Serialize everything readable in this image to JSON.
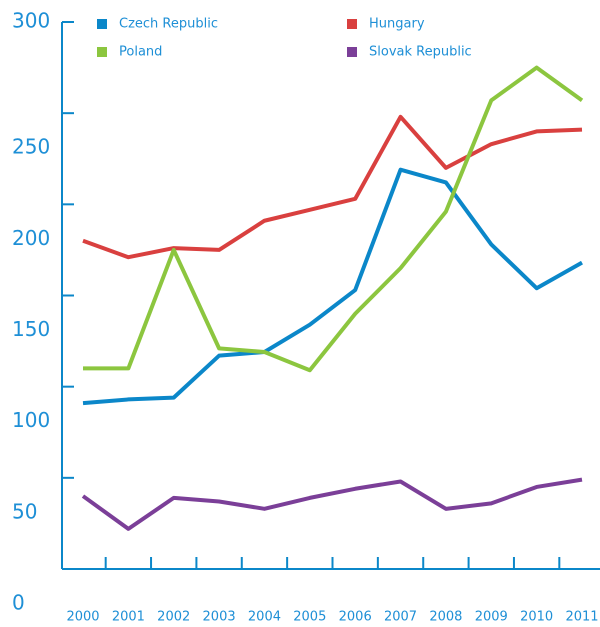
{
  "chart_data": {
    "type": "line",
    "categories": [
      "2000",
      "2001",
      "2002",
      "2003",
      "2004",
      "2005",
      "2006",
      "2007",
      "2008",
      "2009",
      "2010",
      "2011"
    ],
    "series": [
      {
        "name": "Czech Republic",
        "color": "#0b87c9",
        "values": [
          91,
          93,
          94,
          117,
          119,
          134,
          153,
          219,
          212,
          178,
          154,
          168
        ]
      },
      {
        "name": "Hungary",
        "color": "#d9403f",
        "values": [
          180,
          171,
          176,
          175,
          191,
          197,
          203,
          248,
          220,
          233,
          240,
          241
        ]
      },
      {
        "name": "Poland",
        "color": "#8cc63f",
        "values": [
          110,
          110,
          175,
          121,
          119,
          109,
          140,
          165,
          196,
          257,
          275,
          257
        ]
      },
      {
        "name": "Slovak Republic",
        "color": "#7b3f98",
        "values": [
          40,
          22,
          39,
          37,
          33,
          39,
          44,
          48,
          33,
          36,
          45,
          49
        ]
      }
    ],
    "ylim": [
      0,
      300
    ],
    "yticks": [
      0,
      50,
      100,
      150,
      200,
      250,
      300
    ]
  }
}
